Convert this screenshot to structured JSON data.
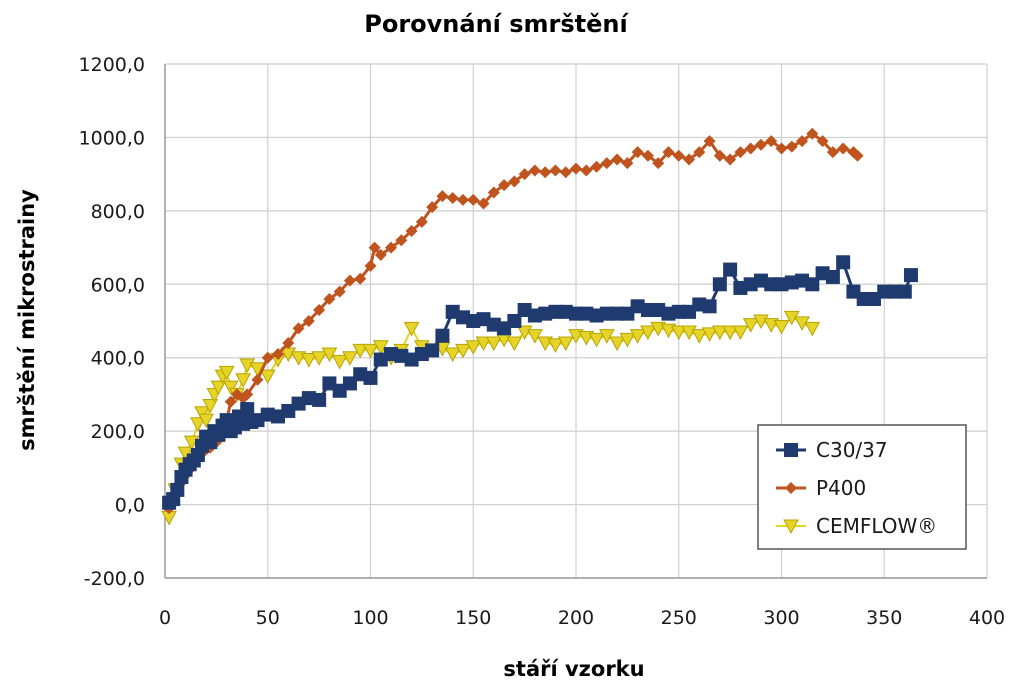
{
  "chart_data": {
    "type": "line",
    "title": "Porovnání smrštění",
    "xlabel": "stáří vzorku",
    "ylabel": "smrštění mikrostrainy",
    "xlim": [
      0,
      400
    ],
    "ylim": [
      -200,
      1200
    ],
    "xticks": [
      0,
      50,
      100,
      150,
      200,
      250,
      300,
      350,
      400
    ],
    "xtick_labels": [
      "0",
      "50",
      "100",
      "150",
      "200",
      "250",
      "300",
      "350",
      "400"
    ],
    "yticks": [
      -200,
      0,
      200,
      400,
      600,
      800,
      1000,
      1200
    ],
    "ytick_labels": [
      "-200,0",
      "0,0",
      "200,0",
      "400,0",
      "600,0",
      "800,0",
      "1000,0",
      "1200,0"
    ],
    "grid": "horizontal",
    "legend": "bottom-right",
    "series": [
      {
        "name": "C30/37",
        "color": "#1f3a6e",
        "marker": "square",
        "points": [
          [
            2,
            5
          ],
          [
            4,
            15
          ],
          [
            6,
            40
          ],
          [
            8,
            75
          ],
          [
            10,
            95
          ],
          [
            12,
            110
          ],
          [
            14,
            120
          ],
          [
            16,
            135
          ],
          [
            18,
            160
          ],
          [
            20,
            185
          ],
          [
            22,
            170
          ],
          [
            24,
            200
          ],
          [
            26,
            190
          ],
          [
            28,
            215
          ],
          [
            30,
            230
          ],
          [
            32,
            200
          ],
          [
            34,
            210
          ],
          [
            36,
            240
          ],
          [
            38,
            220
          ],
          [
            40,
            260
          ],
          [
            42,
            225
          ],
          [
            45,
            230
          ],
          [
            50,
            245
          ],
          [
            55,
            240
          ],
          [
            60,
            255
          ],
          [
            65,
            275
          ],
          [
            70,
            290
          ],
          [
            75,
            285
          ],
          [
            80,
            330
          ],
          [
            85,
            310
          ],
          [
            90,
            330
          ],
          [
            95,
            355
          ],
          [
            100,
            345
          ],
          [
            105,
            395
          ],
          [
            110,
            410
          ],
          [
            115,
            405
          ],
          [
            120,
            395
          ],
          [
            125,
            410
          ],
          [
            130,
            420
          ],
          [
            135,
            460
          ],
          [
            140,
            525
          ],
          [
            145,
            510
          ],
          [
            150,
            500
          ],
          [
            155,
            505
          ],
          [
            160,
            490
          ],
          [
            165,
            480
          ],
          [
            170,
            500
          ],
          [
            175,
            530
          ],
          [
            180,
            515
          ],
          [
            185,
            520
          ],
          [
            190,
            525
          ],
          [
            195,
            525
          ],
          [
            200,
            520
          ],
          [
            205,
            520
          ],
          [
            210,
            515
          ],
          [
            215,
            520
          ],
          [
            220,
            520
          ],
          [
            225,
            520
          ],
          [
            230,
            540
          ],
          [
            235,
            530
          ],
          [
            240,
            530
          ],
          [
            245,
            520
          ],
          [
            250,
            525
          ],
          [
            255,
            525
          ],
          [
            260,
            545
          ],
          [
            265,
            540
          ],
          [
            270,
            600
          ],
          [
            275,
            640
          ],
          [
            280,
            590
          ],
          [
            285,
            600
          ],
          [
            290,
            610
          ],
          [
            295,
            600
          ],
          [
            300,
            600
          ],
          [
            305,
            605
          ],
          [
            310,
            610
          ],
          [
            315,
            600
          ],
          [
            320,
            630
          ],
          [
            325,
            620
          ],
          [
            330,
            660
          ],
          [
            335,
            580
          ],
          [
            340,
            560
          ],
          [
            345,
            560
          ],
          [
            350,
            580
          ],
          [
            355,
            580
          ],
          [
            360,
            580
          ],
          [
            363,
            625
          ]
        ]
      },
      {
        "name": "P400",
        "color": "#c0541e",
        "marker": "diamond",
        "points": [
          [
            2,
            -10
          ],
          [
            5,
            30
          ],
          [
            8,
            60
          ],
          [
            10,
            80
          ],
          [
            12,
            95
          ],
          [
            15,
            120
          ],
          [
            18,
            140
          ],
          [
            20,
            150
          ],
          [
            22,
            155
          ],
          [
            25,
            170
          ],
          [
            28,
            200
          ],
          [
            30,
            230
          ],
          [
            32,
            280
          ],
          [
            35,
            300
          ],
          [
            38,
            290
          ],
          [
            40,
            300
          ],
          [
            45,
            340
          ],
          [
            50,
            400
          ],
          [
            55,
            410
          ],
          [
            60,
            440
          ],
          [
            65,
            480
          ],
          [
            70,
            500
          ],
          [
            75,
            530
          ],
          [
            80,
            560
          ],
          [
            85,
            580
          ],
          [
            90,
            610
          ],
          [
            95,
            615
          ],
          [
            100,
            650
          ],
          [
            102,
            700
          ],
          [
            105,
            680
          ],
          [
            110,
            700
          ],
          [
            115,
            720
          ],
          [
            120,
            745
          ],
          [
            125,
            770
          ],
          [
            130,
            810
          ],
          [
            135,
            840
          ],
          [
            140,
            835
          ],
          [
            145,
            830
          ],
          [
            150,
            830
          ],
          [
            155,
            820
          ],
          [
            160,
            850
          ],
          [
            165,
            870
          ],
          [
            170,
            880
          ],
          [
            175,
            900
          ],
          [
            180,
            910
          ],
          [
            185,
            905
          ],
          [
            190,
            910
          ],
          [
            195,
            905
          ],
          [
            200,
            915
          ],
          [
            205,
            910
          ],
          [
            210,
            920
          ],
          [
            215,
            930
          ],
          [
            220,
            940
          ],
          [
            225,
            930
          ],
          [
            230,
            960
          ],
          [
            235,
            950
          ],
          [
            240,
            930
          ],
          [
            245,
            960
          ],
          [
            250,
            950
          ],
          [
            255,
            940
          ],
          [
            260,
            960
          ],
          [
            265,
            990
          ],
          [
            270,
            950
          ],
          [
            275,
            940
          ],
          [
            280,
            960
          ],
          [
            285,
            970
          ],
          [
            290,
            980
          ],
          [
            295,
            990
          ],
          [
            300,
            970
          ],
          [
            305,
            975
          ],
          [
            310,
            990
          ],
          [
            315,
            1010
          ],
          [
            320,
            990
          ],
          [
            325,
            960
          ],
          [
            330,
            970
          ],
          [
            335,
            960
          ],
          [
            337,
            950
          ]
        ]
      },
      {
        "name": "CEMFLOW®",
        "color": "#e6d428",
        "marker": "triangle-down",
        "points": [
          [
            2,
            -35
          ],
          [
            5,
            40
          ],
          [
            8,
            110
          ],
          [
            10,
            140
          ],
          [
            13,
            170
          ],
          [
            16,
            220
          ],
          [
            18,
            250
          ],
          [
            20,
            230
          ],
          [
            22,
            270
          ],
          [
            24,
            300
          ],
          [
            26,
            320
          ],
          [
            28,
            350
          ],
          [
            30,
            360
          ],
          [
            32,
            320
          ],
          [
            35,
            300
          ],
          [
            38,
            340
          ],
          [
            40,
            380
          ],
          [
            45,
            370
          ],
          [
            50,
            350
          ],
          [
            55,
            395
          ],
          [
            60,
            410
          ],
          [
            65,
            400
          ],
          [
            70,
            395
          ],
          [
            75,
            400
          ],
          [
            80,
            410
          ],
          [
            85,
            390
          ],
          [
            90,
            400
          ],
          [
            95,
            420
          ],
          [
            100,
            420
          ],
          [
            105,
            430
          ],
          [
            110,
            400
          ],
          [
            115,
            420
          ],
          [
            120,
            480
          ],
          [
            125,
            430
          ],
          [
            130,
            420
          ],
          [
            135,
            425
          ],
          [
            140,
            410
          ],
          [
            145,
            420
          ],
          [
            150,
            430
          ],
          [
            155,
            440
          ],
          [
            160,
            440
          ],
          [
            165,
            450
          ],
          [
            170,
            440
          ],
          [
            175,
            470
          ],
          [
            180,
            460
          ],
          [
            185,
            440
          ],
          [
            190,
            435
          ],
          [
            195,
            440
          ],
          [
            200,
            460
          ],
          [
            205,
            455
          ],
          [
            210,
            450
          ],
          [
            215,
            460
          ],
          [
            220,
            440
          ],
          [
            225,
            450
          ],
          [
            230,
            460
          ],
          [
            235,
            470
          ],
          [
            240,
            480
          ],
          [
            245,
            475
          ],
          [
            250,
            470
          ],
          [
            255,
            470
          ],
          [
            260,
            460
          ],
          [
            265,
            465
          ],
          [
            270,
            470
          ],
          [
            275,
            470
          ],
          [
            280,
            470
          ],
          [
            285,
            490
          ],
          [
            290,
            500
          ],
          [
            295,
            490
          ],
          [
            300,
            485
          ],
          [
            305,
            510
          ],
          [
            310,
            495
          ],
          [
            315,
            480
          ]
        ]
      }
    ]
  }
}
